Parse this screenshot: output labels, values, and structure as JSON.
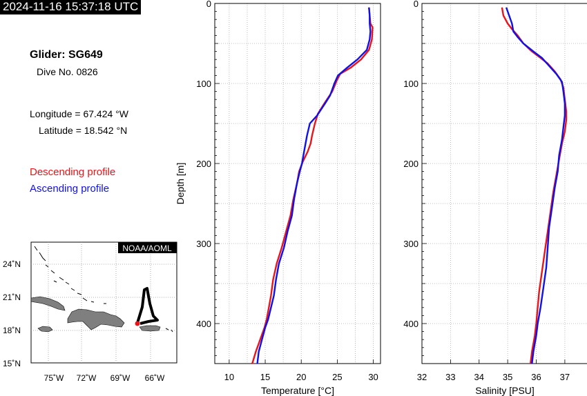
{
  "header": {
    "timestamp": "2024-11-16 15:37:18 UTC"
  },
  "info": {
    "glider": "Glider: SG649",
    "dive": "Dive No. 0826",
    "longitude": "Longitude = 67.424 °W",
    "latitude": "Latitude = 18.542 °N"
  },
  "legend": {
    "descending": {
      "label": "Descending profile",
      "color": "#e8141a"
    },
    "ascending": {
      "label": "Ascending profile",
      "color": "#1010e8"
    }
  },
  "map": {
    "badge": "NOAA/AOML",
    "lon_ticks": [
      "75˚W",
      "72˚W",
      "69˚W",
      "66˚W"
    ],
    "lat_ticks": [
      "24˚N",
      "21˚N",
      "18˚N",
      "15˚N"
    ],
    "track_color": "#000000",
    "position_color": "#e8141a"
  },
  "chart_data": [
    {
      "type": "line",
      "xlabel": "Temperature [°C]",
      "ylabel": "Depth [m]",
      "xlim": [
        8,
        31
      ],
      "ylim": [
        450,
        0
      ],
      "x_ticks": [
        10,
        15,
        20,
        25,
        30
      ],
      "y_ticks": [
        0,
        100,
        200,
        300,
        400
      ],
      "grid": true,
      "series": [
        {
          "color": "#e8141a",
          "x": [
            29.4,
            29.5,
            29.6,
            29.9,
            29.8,
            29.4,
            28.3,
            26.9,
            25.4,
            24.9,
            24.3,
            23.2,
            22.3,
            21.9,
            21.5,
            21.3,
            20.9,
            20.2,
            19.7,
            19.4,
            18.9,
            18.5,
            17.9,
            17.3,
            16.6,
            16.1,
            15.8,
            15.5,
            15.2,
            14.9,
            14.5,
            14.1,
            13.7,
            13.2
          ],
          "y": [
            5,
            15,
            25,
            30,
            45,
            58,
            70,
            80,
            88,
            97,
            110,
            125,
            138,
            150,
            165,
            175,
            185,
            198,
            210,
            225,
            245,
            265,
            285,
            305,
            325,
            345,
            365,
            380,
            395,
            405,
            415,
            425,
            435,
            450
          ]
        },
        {
          "color": "#1010e8",
          "x": [
            29.4,
            29.5,
            29.5,
            29.6,
            29.5,
            29.1,
            27.8,
            26.4,
            25.1,
            24.6,
            24.0,
            23.3,
            22.2,
            21.2,
            20.8,
            20.5,
            20.3,
            20.1,
            19.8,
            19.4,
            19.0,
            18.7,
            18.1,
            17.6,
            16.9,
            16.5,
            16.2,
            15.8,
            15.4,
            15.0,
            14.7,
            14.4,
            14.1,
            13.9
          ],
          "y": [
            5,
            15,
            25,
            35,
            45,
            58,
            70,
            80,
            90,
            100,
            115,
            125,
            140,
            150,
            165,
            180,
            190,
            200,
            210,
            225,
            245,
            265,
            285,
            305,
            325,
            345,
            365,
            380,
            395,
            405,
            415,
            425,
            435,
            450
          ]
        }
      ]
    },
    {
      "type": "line",
      "xlabel": "Salinity [PSU]",
      "ylabel": "",
      "xlim": [
        32,
        37.8
      ],
      "ylim": [
        450,
        0
      ],
      "x_ticks": [
        32,
        33,
        34,
        35,
        36,
        37
      ],
      "y_ticks": [
        0,
        100,
        200,
        300,
        400
      ],
      "grid": true,
      "series": [
        {
          "color": "#e8141a",
          "x": [
            34.8,
            34.85,
            35.0,
            35.15,
            35.35,
            35.55,
            35.85,
            36.15,
            36.4,
            36.65,
            36.85,
            36.95,
            37.0,
            37.05,
            37.05,
            37.0,
            36.9,
            36.8,
            36.7,
            36.6,
            36.5,
            36.4,
            36.3,
            36.2,
            36.1,
            36.05,
            36.0,
            35.95,
            35.9,
            35.85,
            35.8
          ],
          "y": [
            5,
            15,
            25,
            32,
            40,
            50,
            60,
            68,
            75,
            85,
            95,
            105,
            120,
            135,
            145,
            160,
            175,
            195,
            215,
            235,
            260,
            285,
            310,
            335,
            360,
            380,
            400,
            415,
            425,
            435,
            450
          ]
        },
        {
          "color": "#1010e8",
          "x": [
            34.95,
            35.05,
            35.15,
            35.2,
            35.35,
            35.55,
            35.9,
            36.2,
            36.45,
            36.7,
            36.9,
            36.95,
            37.0,
            37.0,
            36.95,
            36.9,
            36.8,
            36.75,
            36.65,
            36.55,
            36.45,
            36.4,
            36.35,
            36.25,
            36.15,
            36.05,
            36.0,
            35.95,
            35.9,
            35.85
          ],
          "y": [
            5,
            15,
            25,
            35,
            42,
            50,
            60,
            68,
            78,
            88,
            98,
            110,
            125,
            140,
            155,
            170,
            190,
            210,
            230,
            255,
            280,
            305,
            330,
            355,
            380,
            400,
            415,
            425,
            435,
            450
          ]
        }
      ]
    }
  ]
}
